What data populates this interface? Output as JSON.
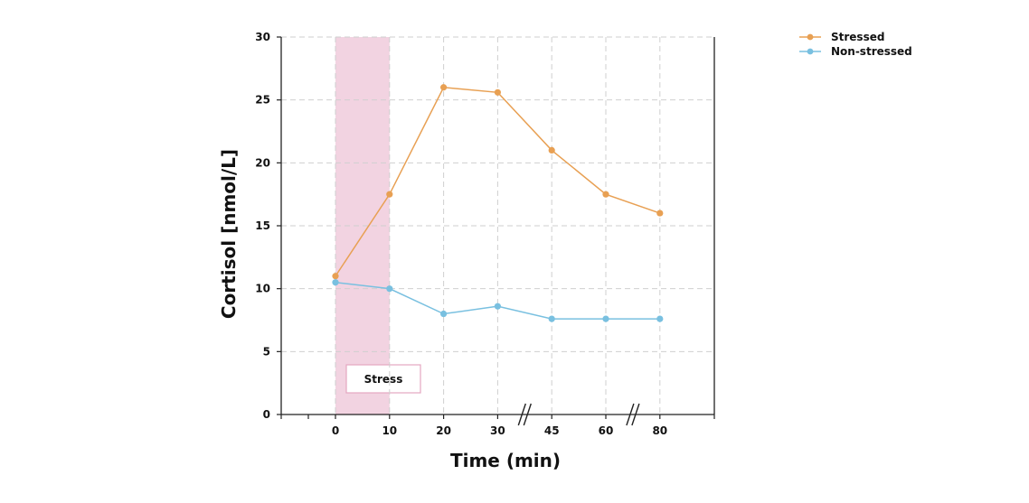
{
  "chart_data": {
    "type": "line",
    "title": "",
    "xlabel": "Time (min)",
    "ylabel": "Cortisol [nmol/L]",
    "categories": [
      "0",
      "10",
      "20",
      "30",
      "45",
      "60",
      "80"
    ],
    "ylim": [
      0,
      30
    ],
    "yticks": [
      0,
      5,
      10,
      15,
      20,
      25,
      30
    ],
    "grid": true,
    "axis_breaks": [
      "30-45",
      "60-80"
    ],
    "series": [
      {
        "name": "Stressed",
        "color": "#e8a053",
        "values": [
          11,
          17.5,
          26,
          25.6,
          21,
          17.5,
          16
        ]
      },
      {
        "name": "Non-stressed",
        "color": "#79c0e0",
        "values": [
          10.5,
          10,
          8,
          8.6,
          7.6,
          7.6,
          7.6
        ]
      }
    ],
    "shaded_region": {
      "label": "Stress",
      "from": "0",
      "to": "10",
      "color": "#f2d3e1"
    },
    "legend": "top-right"
  }
}
